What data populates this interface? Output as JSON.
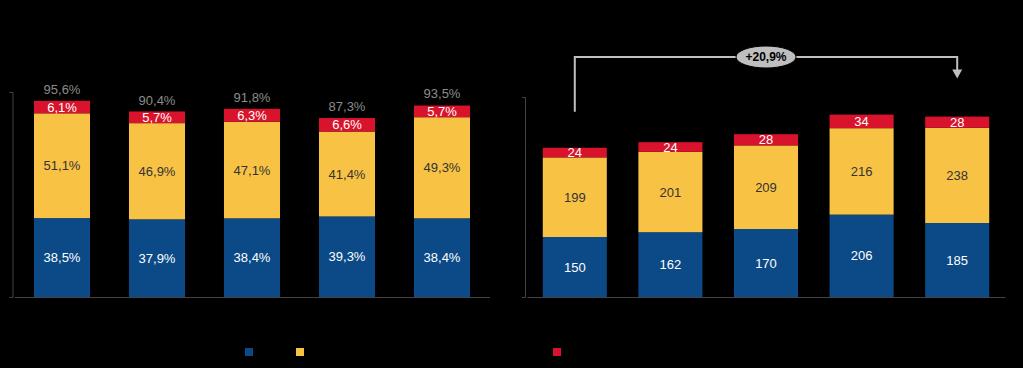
{
  "chart_data": [
    {
      "type": "bar",
      "stacked": true,
      "data_labels": true,
      "tick_labels": false,
      "legend": "bottom",
      "categories": [
        null,
        null,
        null,
        null,
        null
      ],
      "ylim": [
        0,
        100
      ],
      "yticks": [
        0,
        100
      ],
      "series": [
        {
          "color": "#0b4a86",
          "values": [
            38.5,
            37.9,
            38.4,
            39.3,
            38.4
          ],
          "value_labels": [
            "38,5%",
            "37,9%",
            "38,4%",
            "39,3%",
            "38,4%"
          ]
        },
        {
          "color": "#f8c245",
          "values": [
            51.1,
            46.9,
            47.1,
            41.4,
            49.3
          ],
          "value_labels": [
            "51,1%",
            "46,9%",
            "47,1%",
            "41,4%",
            "49,3%"
          ]
        },
        {
          "color": "#d9132c",
          "values": [
            6.1,
            5.7,
            6.3,
            6.6,
            5.7
          ],
          "value_labels": [
            "6,1%",
            "5,7%",
            "6,3%",
            "6,6%",
            "5,7%"
          ]
        }
      ],
      "totals": [
        95.6,
        90.4,
        91.8,
        87.3,
        93.5
      ],
      "total_labels": [
        "95,6%",
        "90,4%",
        "91,8%",
        "87,3%",
        "93,5%"
      ]
    },
    {
      "type": "bar",
      "stacked": true,
      "data_labels": true,
      "tick_labels": false,
      "categories": [
        null,
        null,
        null,
        null,
        null
      ],
      "ylim": [
        0,
        500
      ],
      "yticks": [
        0,
        500
      ],
      "series": [
        {
          "color": "#0b4a86",
          "values": [
            150,
            162,
            170,
            206,
            185
          ]
        },
        {
          "color": "#f8c245",
          "values": [
            199,
            201,
            209,
            216,
            238
          ]
        },
        {
          "color": "#d9132c",
          "values": [
            24,
            24,
            28,
            34,
            28
          ]
        }
      ],
      "annotation": "+20,9%"
    }
  ]
}
